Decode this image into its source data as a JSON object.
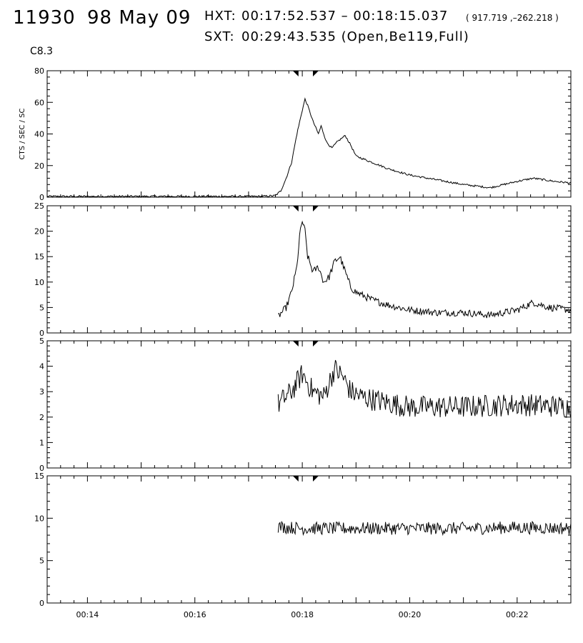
{
  "header": {
    "flare_id": "11930",
    "date": "98 May 09",
    "hxt_label": "HXT:",
    "hxt_range": "00:17:52.537 – 00:18:15.037",
    "coords": "( 917.719 ,–262.218 )",
    "sxt_label": "SXT:",
    "sxt_info": "00:29:43.535 (Open,Be119,Full)",
    "goes_class": "C8.3"
  },
  "colors": {
    "axis": "#000000",
    "line": "#000000",
    "background": "#ffffff"
  },
  "chart_data": [
    {
      "type": "line",
      "panel": 1,
      "ylabel": "CTS / SEC / SC",
      "ylim": [
        0,
        80
      ],
      "yticks": [
        0,
        20,
        40,
        60,
        80
      ],
      "xlim_minutes": [
        13.25,
        23.0
      ],
      "x_units": "minutes after 00:00 UT",
      "x": [
        13.25,
        17.25,
        17.5,
        17.6,
        17.7,
        17.8,
        17.9,
        18.0,
        18.05,
        18.1,
        18.2,
        18.3,
        18.35,
        18.45,
        18.55,
        18.65,
        18.8,
        18.9,
        19.0,
        19.3,
        19.6,
        20.0,
        20.5,
        21.0,
        21.5,
        22.0,
        22.3,
        22.7,
        23.0
      ],
      "y": [
        0.5,
        0.5,
        1,
        4,
        12,
        22,
        40,
        55,
        62,
        58,
        48,
        40,
        45,
        35,
        31,
        35,
        39,
        33,
        26,
        22,
        18,
        14,
        11,
        8,
        6,
        10,
        12,
        10,
        9
      ],
      "noise": 0.6
    },
    {
      "type": "line",
      "panel": 2,
      "ylabel": "",
      "ylim": [
        0,
        25
      ],
      "yticks": [
        0,
        5,
        10,
        15,
        20,
        25
      ],
      "xlim_minutes": [
        13.25,
        23.0
      ],
      "x": [
        17.55,
        17.7,
        17.8,
        17.9,
        17.95,
        18.0,
        18.05,
        18.1,
        18.2,
        18.3,
        18.4,
        18.5,
        18.6,
        18.7,
        18.8,
        18.9,
        19.0,
        19.3,
        19.6,
        20.0,
        20.5,
        21.0,
        21.5,
        22.0,
        22.3,
        22.6,
        23.0
      ],
      "y": [
        3.2,
        5,
        8,
        13,
        19,
        22,
        20,
        15,
        12,
        13,
        10,
        11,
        14,
        15,
        12,
        9,
        8,
        6.5,
        5.5,
        4.5,
        4,
        4,
        3.5,
        4.5,
        6,
        5,
        4.5
      ],
      "noise": 0.7
    },
    {
      "type": "line",
      "panel": 3,
      "ylabel": "",
      "ylim": [
        0,
        5
      ],
      "yticks": [
        0,
        1,
        2,
        3,
        4,
        5
      ],
      "xlim_minutes": [
        13.25,
        23.0
      ],
      "x": [
        17.55,
        17.8,
        18.0,
        18.2,
        18.4,
        18.6,
        18.75,
        18.9,
        19.1,
        19.5,
        20.0,
        21.0,
        22.0,
        23.0
      ],
      "y": [
        2.5,
        3.0,
        3.7,
        3.0,
        2.8,
        3.9,
        3.6,
        3.0,
        2.8,
        2.6,
        2.4,
        2.4,
        2.5,
        2.4
      ],
      "noise": 0.45
    },
    {
      "type": "line",
      "panel": 4,
      "ylabel": "",
      "ylim": [
        0,
        15
      ],
      "yticks": [
        0,
        5,
        10,
        15
      ],
      "xlim_minutes": [
        13.25,
        23.0
      ],
      "xticks": [
        14,
        16,
        18,
        20,
        22
      ],
      "xtick_labels": [
        "00:14",
        "00:16",
        "00:18",
        "00:20",
        "00:22"
      ],
      "x": [
        17.55,
        18.0,
        19.0,
        20.0,
        21.0,
        22.0,
        23.0
      ],
      "y": [
        9.0,
        8.8,
        8.8,
        8.8,
        8.8,
        8.9,
        8.8
      ],
      "noise": 0.75
    }
  ],
  "hxt_markers_minutes": [
    17.876,
    18.251
  ]
}
